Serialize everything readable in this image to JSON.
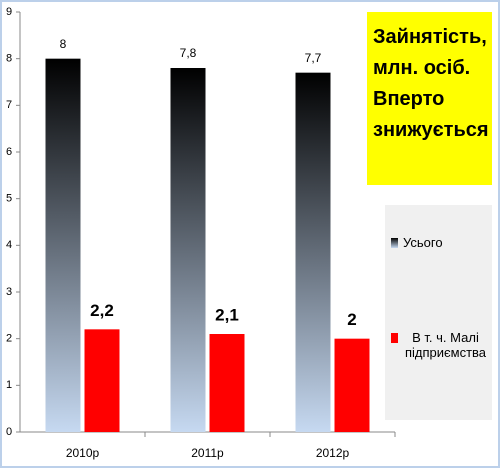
{
  "chart_data": {
    "type": "bar",
    "annotation": "Зайнятість, млн. осіб. Вперто знижується",
    "categories": [
      "2010р",
      "2011р",
      "2012р"
    ],
    "series": [
      {
        "name": "Усього",
        "color": "#000000",
        "gradient_end": "#c6d9f1",
        "values": [
          8,
          7.8,
          7.7
        ],
        "value_labels": [
          "8",
          "7,8",
          "7,7"
        ]
      },
      {
        "name": "В т. ч. Малі підприємства",
        "color": "#ff0000",
        "values": [
          2.2,
          2.1,
          2
        ],
        "value_labels": [
          "2,2",
          "2,1",
          "2"
        ]
      }
    ],
    "ylim": [
      0,
      9
    ],
    "yticks": [
      0,
      1,
      2,
      3,
      4,
      5,
      6,
      7,
      8,
      9
    ]
  }
}
